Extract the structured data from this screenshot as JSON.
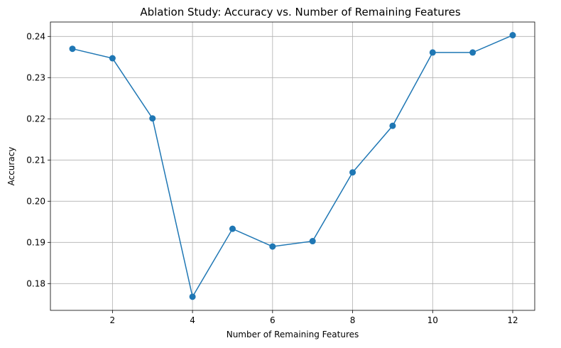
{
  "chart_data": {
    "type": "line",
    "title": "Ablation Study: Accuracy vs. Number of Remaining Features",
    "xlabel": "Number of Remaining Features",
    "ylabel": "Accuracy",
    "xlim": [
      0.45,
      12.55
    ],
    "ylim": [
      0.1735,
      0.2435
    ],
    "x_ticks": [
      2,
      4,
      6,
      8,
      10,
      12
    ],
    "x_tick_labels": [
      "2",
      "4",
      "6",
      "8",
      "10",
      "12"
    ],
    "y_ticks": [
      0.18,
      0.19,
      0.2,
      0.21,
      0.22,
      0.23,
      0.24
    ],
    "y_tick_labels": [
      "0.18",
      "0.19",
      "0.20",
      "0.21",
      "0.22",
      "0.23",
      "0.24"
    ],
    "grid": true,
    "series": [
      {
        "color": "#1f77b4",
        "marker": "circle",
        "x": [
          1,
          2,
          3,
          4,
          5,
          6,
          7,
          8,
          9,
          10,
          11,
          12
        ],
        "y": [
          0.237,
          0.2347,
          0.2201,
          0.1768,
          0.1933,
          0.189,
          0.1903,
          0.207,
          0.2183,
          0.2361,
          0.2361,
          0.2403
        ]
      }
    ]
  }
}
